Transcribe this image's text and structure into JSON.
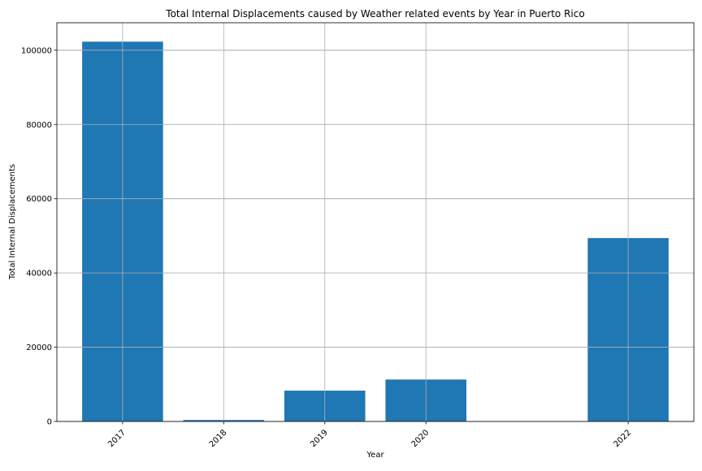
{
  "chart_data": {
    "type": "bar",
    "title": "Total Internal Displacements caused by Weather related events by Year in Puerto Rico",
    "xlabel": "Year",
    "ylabel": "Total Internal Displacements",
    "x": [
      2017,
      2018,
      2019,
      2020,
      2022
    ],
    "values": [
      102300,
      400,
      8300,
      11300,
      49400
    ],
    "xlim": [
      2016.35,
      2022.65
    ],
    "ylim": [
      0,
      107400
    ],
    "x_ticks": [
      2017,
      2018,
      2019,
      2020,
      2022
    ],
    "x_tick_labels": [
      "2017",
      "2018",
      "2019",
      "2020",
      "2022"
    ],
    "y_ticks": [
      0,
      20000,
      40000,
      60000,
      80000,
      100000
    ],
    "y_tick_labels": [
      "0",
      "20000",
      "40000",
      "60000",
      "80000",
      "100000"
    ],
    "bar_width_years": 0.8,
    "grid": true,
    "bar_color": "#1f77b4",
    "grid_color": "#b0b0b0",
    "x_tick_rotation_deg": 45
  }
}
